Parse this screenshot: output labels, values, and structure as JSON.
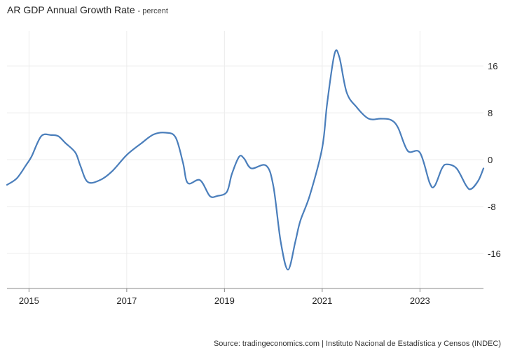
{
  "header": {
    "title": "AR GDP Annual Growth Rate",
    "unit": "percent"
  },
  "source": "Source: tradingeconomics.com | Instituto Nacional de Estadística y Censos (INDEC)",
  "chart_data": {
    "type": "line",
    "title": "AR GDP Annual Growth Rate",
    "subtitle": "percent",
    "xlim": [
      2014.55,
      2024.3
    ],
    "ylim": [
      -22,
      22
    ],
    "x_ticks": [
      2015,
      2017,
      2019,
      2021,
      2023
    ],
    "y_ticks": [
      16,
      8,
      0,
      -8,
      -16
    ],
    "x_tick_labels": [
      "2015",
      "2017",
      "2019",
      "2021",
      "2023"
    ],
    "y_tick_labels": [
      "16",
      "8",
      "0",
      "-8",
      "-16"
    ],
    "grid": true,
    "legend": "none",
    "color": "#4a7ebb",
    "series": [
      {
        "points": [
          [
            2014.55,
            -4.3
          ],
          [
            2014.75,
            -3.2
          ],
          [
            2014.95,
            -0.8
          ],
          [
            2015.05,
            0.5
          ],
          [
            2015.25,
            4.0
          ],
          [
            2015.45,
            4.2
          ],
          [
            2015.6,
            4.0
          ],
          [
            2015.75,
            2.8
          ],
          [
            2015.95,
            1.2
          ],
          [
            2016.05,
            -1.0
          ],
          [
            2016.2,
            -3.8
          ],
          [
            2016.45,
            -3.5
          ],
          [
            2016.7,
            -2.0
          ],
          [
            2017.0,
            0.8
          ],
          [
            2017.3,
            2.8
          ],
          [
            2017.55,
            4.3
          ],
          [
            2017.8,
            4.6
          ],
          [
            2018.0,
            3.8
          ],
          [
            2018.15,
            -0.5
          ],
          [
            2018.25,
            -4.0
          ],
          [
            2018.5,
            -3.5
          ],
          [
            2018.7,
            -6.2
          ],
          [
            2018.85,
            -6.2
          ],
          [
            2019.05,
            -5.5
          ],
          [
            2019.15,
            -2.5
          ],
          [
            2019.3,
            0.5
          ],
          [
            2019.4,
            0.2
          ],
          [
            2019.55,
            -1.5
          ],
          [
            2019.85,
            -1.0
          ],
          [
            2020.0,
            -4.5
          ],
          [
            2020.15,
            -14.0
          ],
          [
            2020.3,
            -18.8
          ],
          [
            2020.45,
            -14.0
          ],
          [
            2020.55,
            -10.5
          ],
          [
            2020.75,
            -6.0
          ],
          [
            2021.0,
            2.0
          ],
          [
            2021.1,
            9.5
          ],
          [
            2021.25,
            18.0
          ],
          [
            2021.35,
            17.5
          ],
          [
            2021.5,
            11.5
          ],
          [
            2021.7,
            9.0
          ],
          [
            2021.95,
            7.0
          ],
          [
            2022.2,
            7.0
          ],
          [
            2022.4,
            6.8
          ],
          [
            2022.55,
            5.5
          ],
          [
            2022.75,
            1.5
          ],
          [
            2023.0,
            1.2
          ],
          [
            2023.2,
            -4.0
          ],
          [
            2023.3,
            -4.5
          ],
          [
            2023.45,
            -1.5
          ],
          [
            2023.55,
            -0.8
          ],
          [
            2023.75,
            -1.5
          ],
          [
            2023.95,
            -4.5
          ],
          [
            2024.05,
            -5.0
          ],
          [
            2024.2,
            -3.5
          ],
          [
            2024.3,
            -1.5
          ]
        ]
      }
    ]
  }
}
